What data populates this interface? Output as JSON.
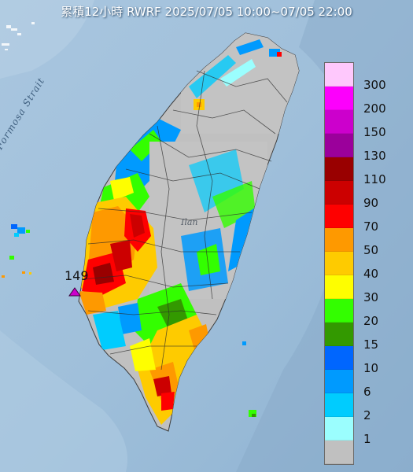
{
  "title": "累積12小時 RWRF 2025/07/05 10:00~07/05 22:00",
  "place_labels": {
    "strait": "Formosa Strait",
    "region": "Ilan"
  },
  "max_marker": {
    "value_label": "149"
  },
  "legend": [
    {
      "label": "300",
      "color": "#fec8fc"
    },
    {
      "label": "200",
      "color": "#fc00fc"
    },
    {
      "label": "150",
      "color": "#cc00cc"
    },
    {
      "label": "130",
      "color": "#9b009b"
    },
    {
      "label": "110",
      "color": "#990000"
    },
    {
      "label": "90",
      "color": "#cc0000"
    },
    {
      "label": "70",
      "color": "#fe0000"
    },
    {
      "label": "50",
      "color": "#fe9900"
    },
    {
      "label": "40",
      "color": "#fecb00"
    },
    {
      "label": "30",
      "color": "#fefe00"
    },
    {
      "label": "20",
      "color": "#33fe00"
    },
    {
      "label": "15",
      "color": "#339900"
    },
    {
      "label": "10",
      "color": "#0066fe"
    },
    {
      "label": "6",
      "color": "#009afe"
    },
    {
      "label": "2",
      "color": "#00ccfe"
    },
    {
      "label": "1",
      "color": "#9bfefe"
    },
    {
      "label": "",
      "color": "#c0c0c0"
    }
  ]
}
